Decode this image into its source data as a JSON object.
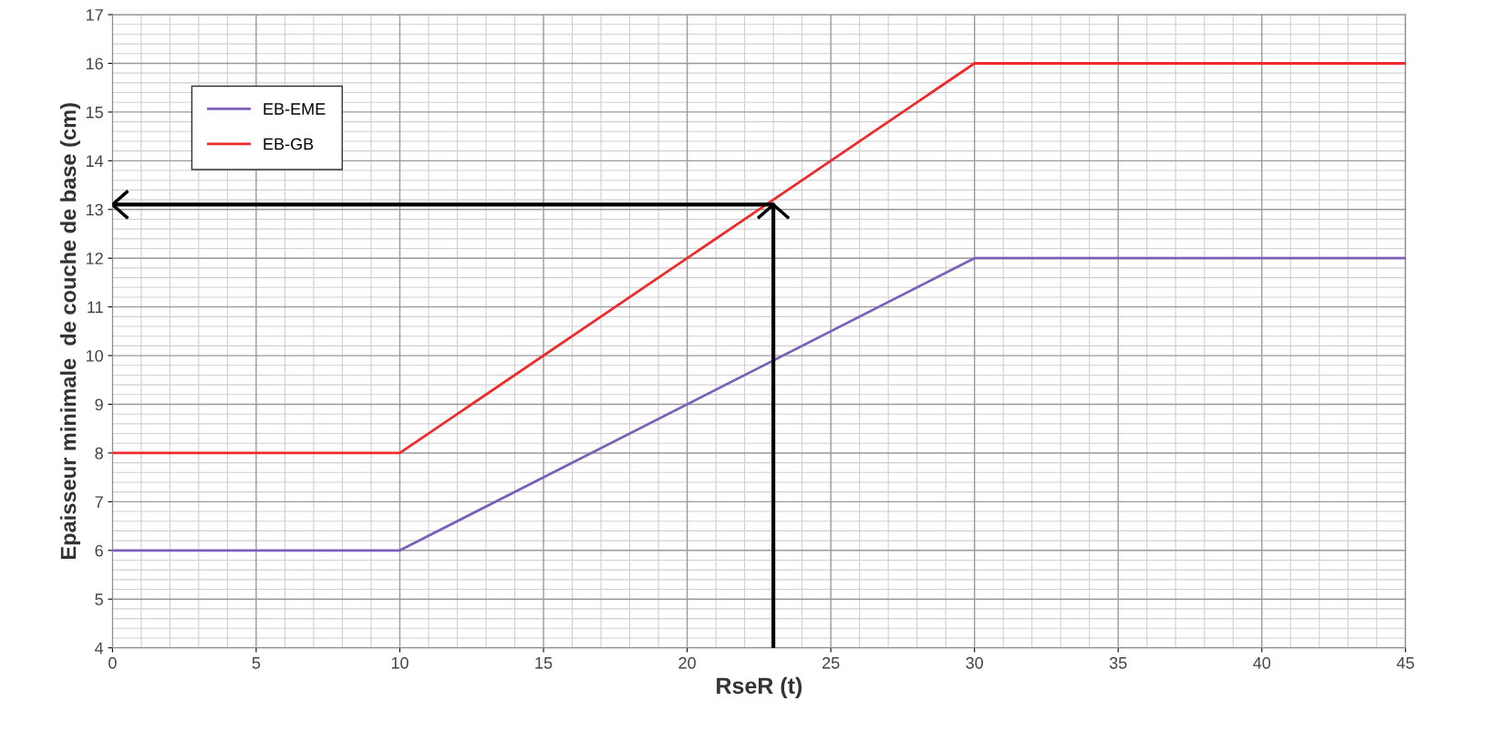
{
  "chart_data": {
    "type": "line",
    "xlabel": "RseR (t)",
    "ylabel": "Epaisseur minimale  de couche de base (cm)",
    "xlim": [
      0,
      45
    ],
    "ylim": [
      4,
      17
    ],
    "xticks": [
      0,
      5,
      10,
      15,
      20,
      25,
      30,
      35,
      40,
      45
    ],
    "yticks": [
      4,
      5,
      6,
      7,
      8,
      9,
      10,
      11,
      12,
      13,
      14,
      15,
      16,
      17
    ],
    "grid": true,
    "legend": "top left",
    "marker": "none",
    "line_style": "solid",
    "series": [
      {
        "name": "EB-EME",
        "color": "#7b5fb8",
        "x": [
          0,
          10,
          30,
          45
        ],
        "values": [
          6,
          6,
          12,
          12
        ]
      },
      {
        "name": "EB-GB",
        "color": "#ee2a2a",
        "x": [
          0,
          10,
          30,
          45
        ],
        "values": [
          8,
          8,
          16,
          16
        ]
      },
      {
        "type": "line",
        "color": "#000000",
        "x": [
          23,
          23,
          0
        ],
        "values": [
          4,
          13.1,
          13.1
        ]
      }
    ]
  }
}
